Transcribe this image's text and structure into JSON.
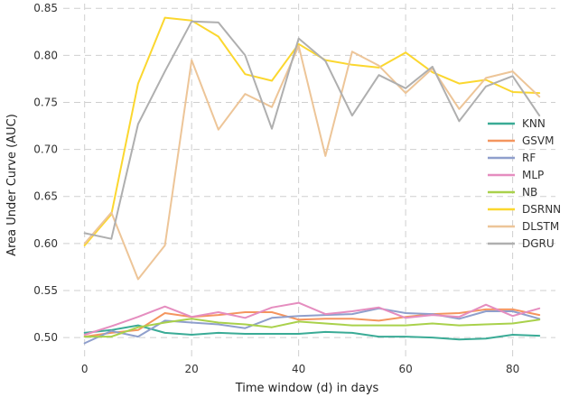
{
  "chart_data": {
    "type": "line",
    "xlabel": "Time window (d) in days",
    "ylabel": "Area Under Curve (AUC)",
    "xlim": [
      -4,
      88
    ],
    "ylim": [
      0.48,
      0.855
    ],
    "xticks": [
      0,
      20,
      40,
      60,
      80
    ],
    "yticks": [
      0.5,
      0.55,
      0.6,
      0.65,
      0.7,
      0.75,
      0.8,
      0.85
    ],
    "grid": true,
    "legend_position": "right",
    "x": [
      0,
      5,
      10,
      15,
      20,
      25,
      30,
      35,
      40,
      45,
      50,
      55,
      60,
      65,
      70,
      75,
      80,
      85
    ],
    "series": [
      {
        "name": "KNN",
        "color": "#3aab96",
        "values": [
          0.505,
          0.508,
          0.513,
          0.505,
          0.503,
          0.505,
          0.504,
          0.504,
          0.504,
          0.506,
          0.505,
          0.501,
          0.501,
          0.5,
          0.498,
          0.499,
          0.503,
          0.502
        ]
      },
      {
        "name": "GSVM",
        "color": "#f4955e",
        "values": [
          0.501,
          0.505,
          0.508,
          0.526,
          0.522,
          0.524,
          0.527,
          0.527,
          0.519,
          0.52,
          0.52,
          0.518,
          0.522,
          0.525,
          0.526,
          0.53,
          0.53,
          0.524
        ]
      },
      {
        "name": "RF",
        "color": "#8f9fcc",
        "values": [
          0.494,
          0.507,
          0.501,
          0.518,
          0.516,
          0.514,
          0.51,
          0.521,
          0.523,
          0.524,
          0.525,
          0.531,
          0.526,
          0.525,
          0.52,
          0.528,
          0.528,
          0.52
        ]
      },
      {
        "name": "MLP",
        "color": "#e58dbf",
        "values": [
          0.503,
          0.512,
          0.522,
          0.533,
          0.522,
          0.527,
          0.521,
          0.532,
          0.537,
          0.525,
          0.528,
          0.532,
          0.521,
          0.524,
          0.522,
          0.535,
          0.523,
          0.531
        ]
      },
      {
        "name": "NB",
        "color": "#a9d14b",
        "values": [
          0.501,
          0.501,
          0.511,
          0.516,
          0.52,
          0.516,
          0.514,
          0.511,
          0.517,
          0.515,
          0.513,
          0.513,
          0.513,
          0.515,
          0.513,
          0.514,
          0.515,
          0.519
        ]
      },
      {
        "name": "DSRNN",
        "color": "#fbd72f",
        "values": [
          0.598,
          0.631,
          0.77,
          0.84,
          0.837,
          0.82,
          0.78,
          0.773,
          0.812,
          0.795,
          0.79,
          0.787,
          0.803,
          0.782,
          0.77,
          0.774,
          0.761,
          0.76
        ]
      },
      {
        "name": "DLSTM",
        "color": "#edc598",
        "values": [
          0.6,
          0.633,
          0.562,
          0.598,
          0.795,
          0.721,
          0.759,
          0.745,
          0.81,
          0.693,
          0.804,
          0.789,
          0.76,
          0.786,
          0.743,
          0.776,
          0.783,
          0.756
        ]
      },
      {
        "name": "DGRU",
        "color": "#afafaf",
        "values": [
          0.611,
          0.605,
          0.727,
          0.783,
          0.836,
          0.835,
          0.8,
          0.722,
          0.818,
          0.794,
          0.736,
          0.779,
          0.765,
          0.788,
          0.73,
          0.767,
          0.778,
          0.736
        ]
      }
    ]
  }
}
